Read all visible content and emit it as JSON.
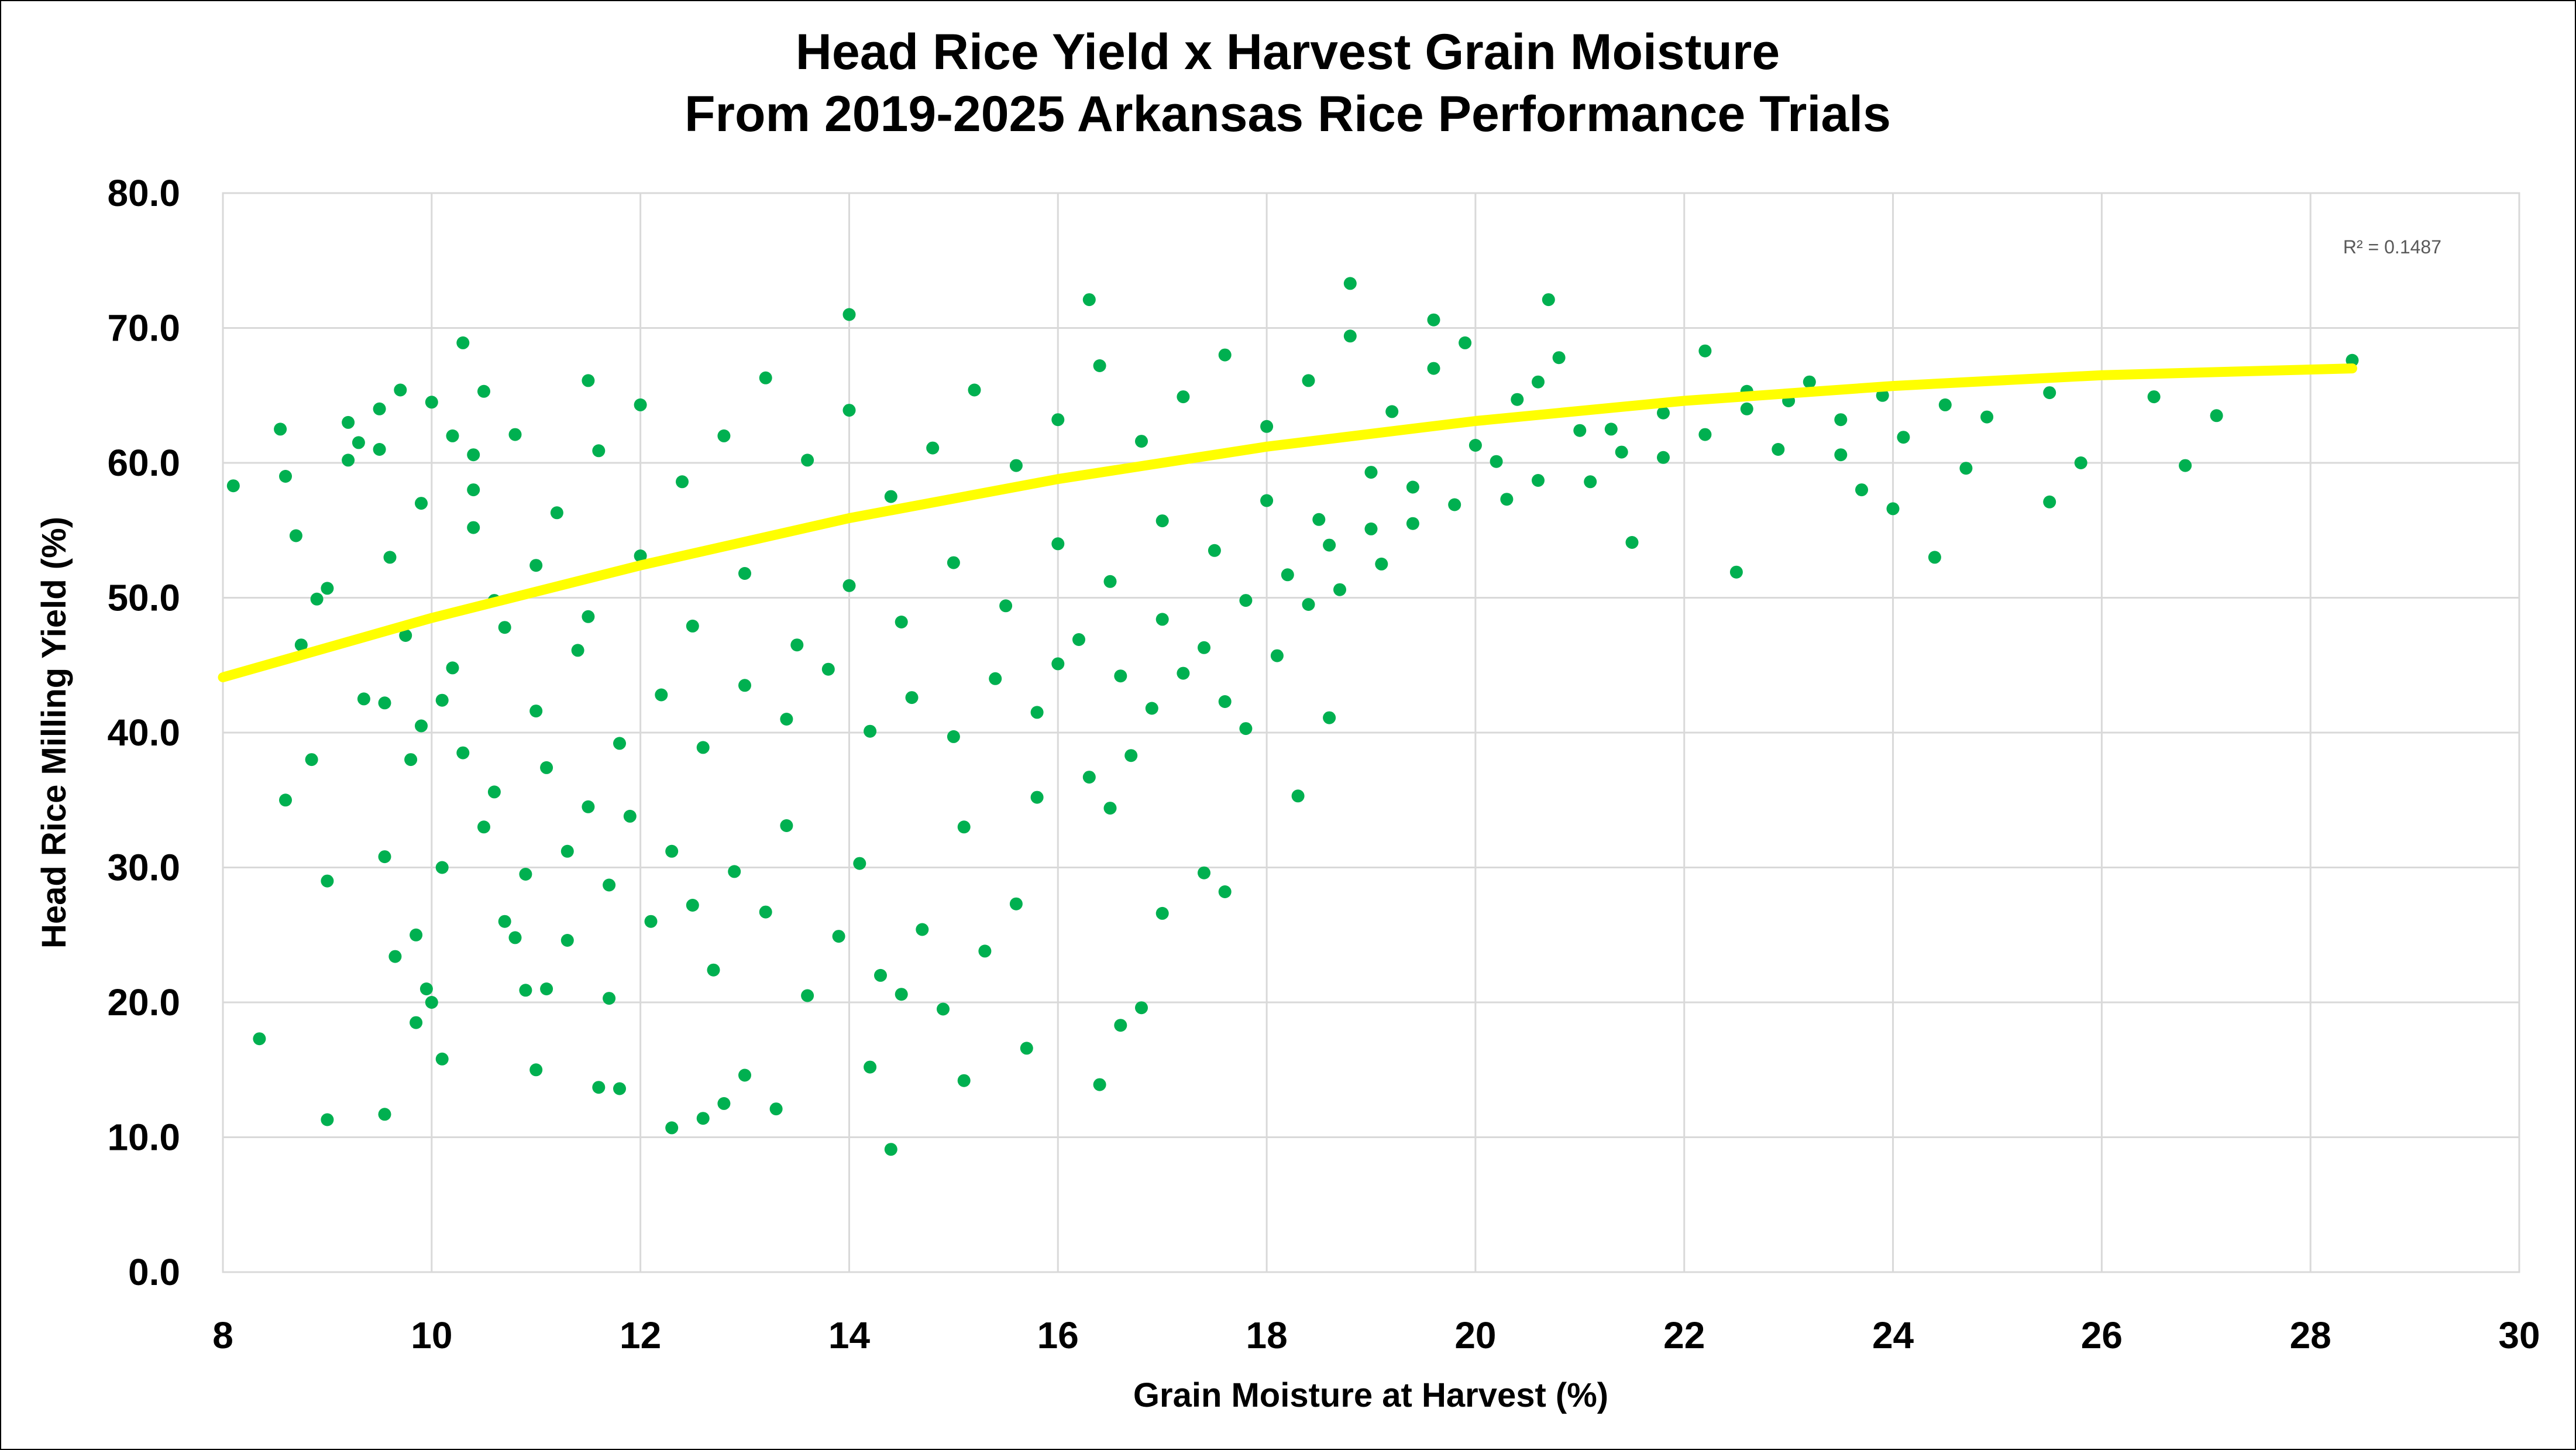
{
  "chart_data": {
    "type": "scatter",
    "title": [
      "Head Rice Yield x Harvest Grain Moisture",
      "From 2019-2025 Arkansas Rice Performance Trials"
    ],
    "xlabel": "Grain Moisture at Harvest (%)",
    "ylabel": "Head Rice Milling Yield (%)",
    "xlim": [
      8,
      30
    ],
    "ylim": [
      0,
      80
    ],
    "x_ticks": [
      "8",
      "10",
      "12",
      "14",
      "16",
      "18",
      "20",
      "22",
      "24",
      "26",
      "28",
      "30"
    ],
    "y_ticks": [
      "0.0",
      "10.0",
      "20.0",
      "30.0",
      "40.0",
      "50.0",
      "60.0",
      "70.0",
      "80.0"
    ],
    "grid": true,
    "legend": "none",
    "point_color": "#00B050",
    "trendline": {
      "type": "polynomial (order 2)",
      "color": "#FFFF00",
      "label": "R² = 0.1487",
      "x": [
        8.0,
        10.0,
        12.0,
        14.0,
        16.0,
        18.0,
        20.0,
        22.0,
        24.0,
        26.0,
        28.4
      ],
      "y": [
        44.1,
        48.5,
        52.4,
        55.9,
        58.8,
        61.2,
        63.1,
        64.6,
        65.7,
        66.5,
        67.0
      ]
    },
    "series": [
      {
        "color": "#00B050",
        "points": [
          [
            8.1,
            58.3
          ],
          [
            8.35,
            17.3
          ],
          [
            8.55,
            62.5
          ],
          [
            8.6,
            59.0
          ],
          [
            8.6,
            35.0
          ],
          [
            8.7,
            54.6
          ],
          [
            8.75,
            46.5
          ],
          [
            8.85,
            38.0
          ],
          [
            8.9,
            49.9
          ],
          [
            9.0,
            50.7
          ],
          [
            9.0,
            29.0
          ],
          [
            9.0,
            11.3
          ],
          [
            9.2,
            63.0
          ],
          [
            9.2,
            60.2
          ],
          [
            9.3,
            61.5
          ],
          [
            9.35,
            42.5
          ],
          [
            9.5,
            64.0
          ],
          [
            9.5,
            61.0
          ],
          [
            9.55,
            42.2
          ],
          [
            9.55,
            30.8
          ],
          [
            9.55,
            11.7
          ],
          [
            9.6,
            53.0
          ],
          [
            9.65,
            23.4
          ],
          [
            9.7,
            65.4
          ],
          [
            9.75,
            47.2
          ],
          [
            9.8,
            38.0
          ],
          [
            9.85,
            25.0
          ],
          [
            9.85,
            18.5
          ],
          [
            9.9,
            57.0
          ],
          [
            9.95,
            21.0
          ],
          [
            10.0,
            64.5
          ],
          [
            10.0,
            20.0
          ],
          [
            10.1,
            15.8
          ],
          [
            10.1,
            42.4
          ],
          [
            10.2,
            62.0
          ],
          [
            10.3,
            68.9
          ],
          [
            10.4,
            60.6
          ],
          [
            10.4,
            55.2
          ],
          [
            10.5,
            65.3
          ],
          [
            10.6,
            35.6
          ],
          [
            10.7,
            47.8
          ],
          [
            10.8,
            24.8
          ],
          [
            10.9,
            20.9
          ],
          [
            11.0,
            15.0
          ],
          [
            11.1,
            21.0
          ],
          [
            11.3,
            24.6
          ],
          [
            11.5,
            66.1
          ],
          [
            11.6,
            13.7
          ],
          [
            11.7,
            20.3
          ],
          [
            11.8,
            13.6
          ],
          [
            12.3,
            10.7
          ],
          [
            12.6,
            11.4
          ],
          [
            12.8,
            12.5
          ],
          [
            13.0,
            14.6
          ],
          [
            13.3,
            12.1
          ],
          [
            14.2,
            15.2
          ],
          [
            14.4,
            9.1
          ],
          [
            15.1,
            14.2
          ],
          [
            15.7,
            16.6
          ],
          [
            16.4,
            13.9
          ],
          [
            16.6,
            18.3
          ],
          [
            16.8,
            19.6
          ],
          [
            17.0,
            26.6
          ],
          [
            17.4,
            29.6
          ],
          [
            17.6,
            28.2
          ],
          [
            18.3,
            35.3
          ],
          [
            18.6,
            41.1
          ],
          [
            18.8,
            73.3
          ],
          [
            16.3,
            72.1
          ],
          [
            20.7,
            72.1
          ],
          [
            14.0,
            71.0
          ],
          [
            19.6,
            70.6
          ],
          [
            22.5,
            51.9
          ],
          [
            21.5,
            54.1
          ],
          [
            23.5,
            60.6
          ],
          [
            24.0,
            56.6
          ],
          [
            24.4,
            53.0
          ],
          [
            24.7,
            59.6
          ],
          [
            25.5,
            57.1
          ],
          [
            25.8,
            60.0
          ],
          [
            25.5,
            65.2
          ],
          [
            26.5,
            64.9
          ],
          [
            26.8,
            59.8
          ],
          [
            27.1,
            63.5
          ],
          [
            28.4,
            67.6
          ],
          [
            24.9,
            63.4
          ],
          [
            24.5,
            64.3
          ],
          [
            24.1,
            61.9
          ],
          [
            23.9,
            65.0
          ],
          [
            23.7,
            58.0
          ],
          [
            23.5,
            63.2
          ],
          [
            23.2,
            66.0
          ],
          [
            22.9,
            61.0
          ],
          [
            22.6,
            64.0
          ],
          [
            22.2,
            68.3
          ],
          [
            21.8,
            60.4
          ],
          [
            21.3,
            62.5
          ],
          [
            21.1,
            58.6
          ],
          [
            20.6,
            66.0
          ],
          [
            20.3,
            57.3
          ],
          [
            19.9,
            68.9
          ],
          [
            19.4,
            55.5
          ],
          [
            19.1,
            52.5
          ],
          [
            18.7,
            50.6
          ],
          [
            18.4,
            49.5
          ],
          [
            18.1,
            45.7
          ],
          [
            17.8,
            40.3
          ],
          [
            17.6,
            42.3
          ],
          [
            17.2,
            44.4
          ],
          [
            16.9,
            41.8
          ],
          [
            16.7,
            38.3
          ],
          [
            16.5,
            34.4
          ],
          [
            16.3,
            36.7
          ],
          [
            16.0,
            45.1
          ],
          [
            15.8,
            35.2
          ],
          [
            15.6,
            27.3
          ],
          [
            15.3,
            23.8
          ],
          [
            15.1,
            33.0
          ],
          [
            14.9,
            19.5
          ],
          [
            14.7,
            25.4
          ],
          [
            14.5,
            20.6
          ],
          [
            14.3,
            22.0
          ],
          [
            14.1,
            30.3
          ],
          [
            13.9,
            24.9
          ],
          [
            13.6,
            20.5
          ],
          [
            13.4,
            33.1
          ],
          [
            13.2,
            26.7
          ],
          [
            12.9,
            29.7
          ],
          [
            12.7,
            22.4
          ],
          [
            12.5,
            27.2
          ],
          [
            12.3,
            31.2
          ],
          [
            12.1,
            26.0
          ],
          [
            11.9,
            33.8
          ],
          [
            11.7,
            28.7
          ],
          [
            11.5,
            34.5
          ],
          [
            11.3,
            31.2
          ],
          [
            11.1,
            37.4
          ],
          [
            10.9,
            29.5
          ],
          [
            10.7,
            26.0
          ],
          [
            10.5,
            33.0
          ],
          [
            10.3,
            38.5
          ],
          [
            10.1,
            30.0
          ],
          [
            9.9,
            40.5
          ],
          [
            10.2,
            44.8
          ],
          [
            10.6,
            49.8
          ],
          [
            11.0,
            41.6
          ],
          [
            11.4,
            46.1
          ],
          [
            11.8,
            39.2
          ],
          [
            12.2,
            42.8
          ],
          [
            12.6,
            38.9
          ],
          [
            13.0,
            43.5
          ],
          [
            13.4,
            41.0
          ],
          [
            13.8,
            44.7
          ],
          [
            14.2,
            40.1
          ],
          [
            14.6,
            42.6
          ],
          [
            15.0,
            39.7
          ],
          [
            15.4,
            44.0
          ],
          [
            15.8,
            41.5
          ],
          [
            16.2,
            46.9
          ],
          [
            16.6,
            44.2
          ],
          [
            17.0,
            48.4
          ],
          [
            17.4,
            46.3
          ],
          [
            17.8,
            49.8
          ],
          [
            18.2,
            51.7
          ],
          [
            18.6,
            53.9
          ],
          [
            19.0,
            55.1
          ],
          [
            19.4,
            58.2
          ],
          [
            19.8,
            56.9
          ],
          [
            20.2,
            60.1
          ],
          [
            20.6,
            58.7
          ],
          [
            21.0,
            62.4
          ],
          [
            21.4,
            60.8
          ],
          [
            21.8,
            63.7
          ],
          [
            22.2,
            62.1
          ],
          [
            22.6,
            65.3
          ],
          [
            23.0,
            64.6
          ],
          [
            10.4,
            58.0
          ],
          [
            10.8,
            62.1
          ],
          [
            11.2,
            56.3
          ],
          [
            11.6,
            60.9
          ],
          [
            12.0,
            64.3
          ],
          [
            12.4,
            58.6
          ],
          [
            12.8,
            62.0
          ],
          [
            13.2,
            66.3
          ],
          [
            13.6,
            60.2
          ],
          [
            14.0,
            63.9
          ],
          [
            14.4,
            57.5
          ],
          [
            14.8,
            61.1
          ],
          [
            15.2,
            65.4
          ],
          [
            15.6,
            59.8
          ],
          [
            16.0,
            63.2
          ],
          [
            16.4,
            67.2
          ],
          [
            16.8,
            61.6
          ],
          [
            17.2,
            64.9
          ],
          [
            17.6,
            68.0
          ],
          [
            18.0,
            62.7
          ],
          [
            18.4,
            66.1
          ],
          [
            18.8,
            69.4
          ],
          [
            19.2,
            63.8
          ],
          [
            19.6,
            67.0
          ],
          [
            20.0,
            61.3
          ],
          [
            20.4,
            64.7
          ],
          [
            20.8,
            67.8
          ],
          [
            11.0,
            52.4
          ],
          [
            11.5,
            48.6
          ],
          [
            12.0,
            53.1
          ],
          [
            12.5,
            47.9
          ],
          [
            13.0,
            51.8
          ],
          [
            13.5,
            46.5
          ],
          [
            14.0,
            50.9
          ],
          [
            14.5,
            48.2
          ],
          [
            15.0,
            52.6
          ],
          [
            15.5,
            49.4
          ],
          [
            16.0,
            54.0
          ],
          [
            16.5,
            51.2
          ],
          [
            17.0,
            55.7
          ],
          [
            17.5,
            53.5
          ],
          [
            18.0,
            57.2
          ],
          [
            18.5,
            55.8
          ],
          [
            19.0,
            59.3
          ]
        ]
      }
    ]
  }
}
